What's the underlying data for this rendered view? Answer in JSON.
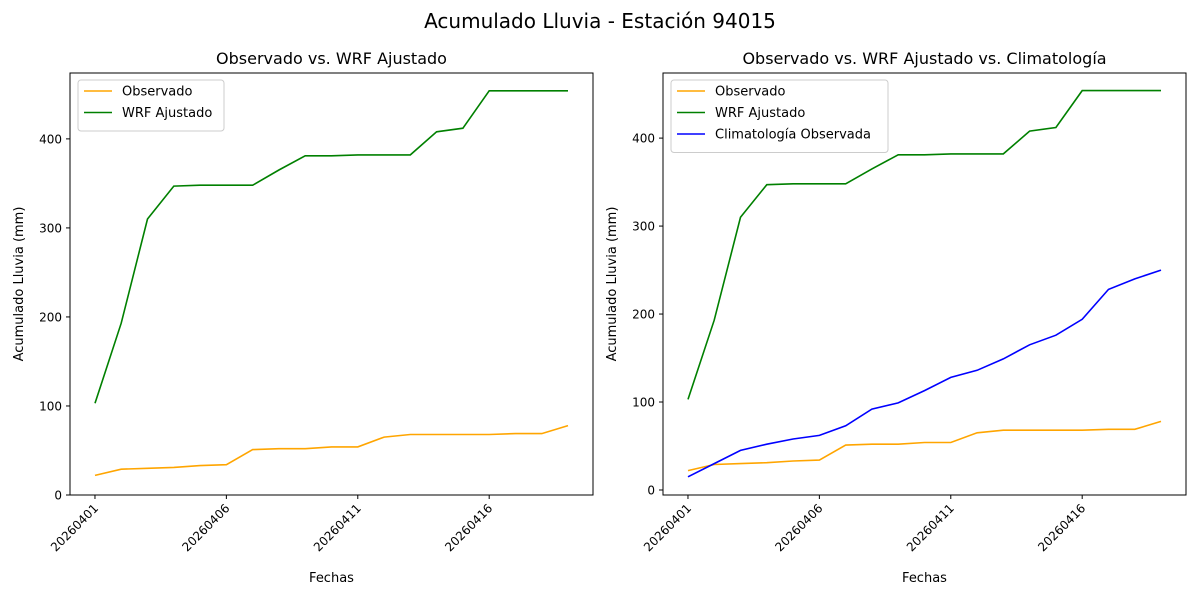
{
  "suptitle": "Acumulado Lluvia - Estación 94015",
  "chart_data": [
    {
      "type": "line",
      "title": "Observado vs. WRF Ajustado",
      "xlabel": "Fechas",
      "ylabel": "Acumulado Lluvia (mm)",
      "x": [
        "20260401",
        "20260402",
        "20260403",
        "20260404",
        "20260405",
        "20260406",
        "20260407",
        "20260408",
        "20260409",
        "20260410",
        "20260411",
        "20260412",
        "20260413",
        "20260414",
        "20260415",
        "20260416",
        "20260417",
        "20260418",
        "20260419"
      ],
      "xticks": [
        "20260401",
        "20260406",
        "20260411",
        "20260416"
      ],
      "yticks": [
        0,
        100,
        200,
        300,
        400
      ],
      "ylim": [
        0,
        474
      ],
      "legend": "upper-left",
      "series": [
        {
          "name": "Observado",
          "color": "#ffa500",
          "values": [
            22,
            29,
            30,
            31,
            33,
            34,
            51,
            52,
            52,
            54,
            54,
            65,
            68,
            68,
            68,
            68,
            69,
            69,
            78
          ]
        },
        {
          "name": "WRF Ajustado",
          "color": "#008000",
          "values": [
            103,
            193,
            310,
            347,
            348,
            348,
            348,
            365,
            381,
            381,
            382,
            382,
            382,
            408,
            412,
            454,
            454,
            454,
            454
          ]
        }
      ]
    },
    {
      "type": "line",
      "title": "Observado vs. WRF Ajustado vs. Climatología",
      "xlabel": "Fechas",
      "ylabel": "Acumulado Lluvia (mm)",
      "x": [
        "20260401",
        "20260402",
        "20260403",
        "20260404",
        "20260405",
        "20260406",
        "20260407",
        "20260408",
        "20260409",
        "20260410",
        "20260411",
        "20260412",
        "20260413",
        "20260414",
        "20260415",
        "20260416",
        "20260417",
        "20260418",
        "20260419"
      ],
      "xticks": [
        "20260401",
        "20260406",
        "20260411",
        "20260416"
      ],
      "yticks": [
        0,
        100,
        200,
        300,
        400
      ],
      "ylim": [
        -5.7,
        474
      ],
      "legend": "upper-left",
      "series": [
        {
          "name": "Observado",
          "color": "#ffa500",
          "values": [
            22,
            29,
            30,
            31,
            33,
            34,
            51,
            52,
            52,
            54,
            54,
            65,
            68,
            68,
            68,
            68,
            69,
            69,
            78
          ]
        },
        {
          "name": "WRF Ajustado",
          "color": "#008000",
          "values": [
            103,
            193,
            310,
            347,
            348,
            348,
            348,
            365,
            381,
            381,
            382,
            382,
            382,
            408,
            412,
            454,
            454,
            454,
            454
          ]
        },
        {
          "name": "Climatología Observada",
          "color": "#0000ff",
          "values": [
            15,
            30,
            45,
            52,
            58,
            62,
            73,
            92,
            99,
            113,
            128,
            136,
            149,
            165,
            176,
            194,
            228,
            240,
            250
          ]
        }
      ]
    }
  ]
}
